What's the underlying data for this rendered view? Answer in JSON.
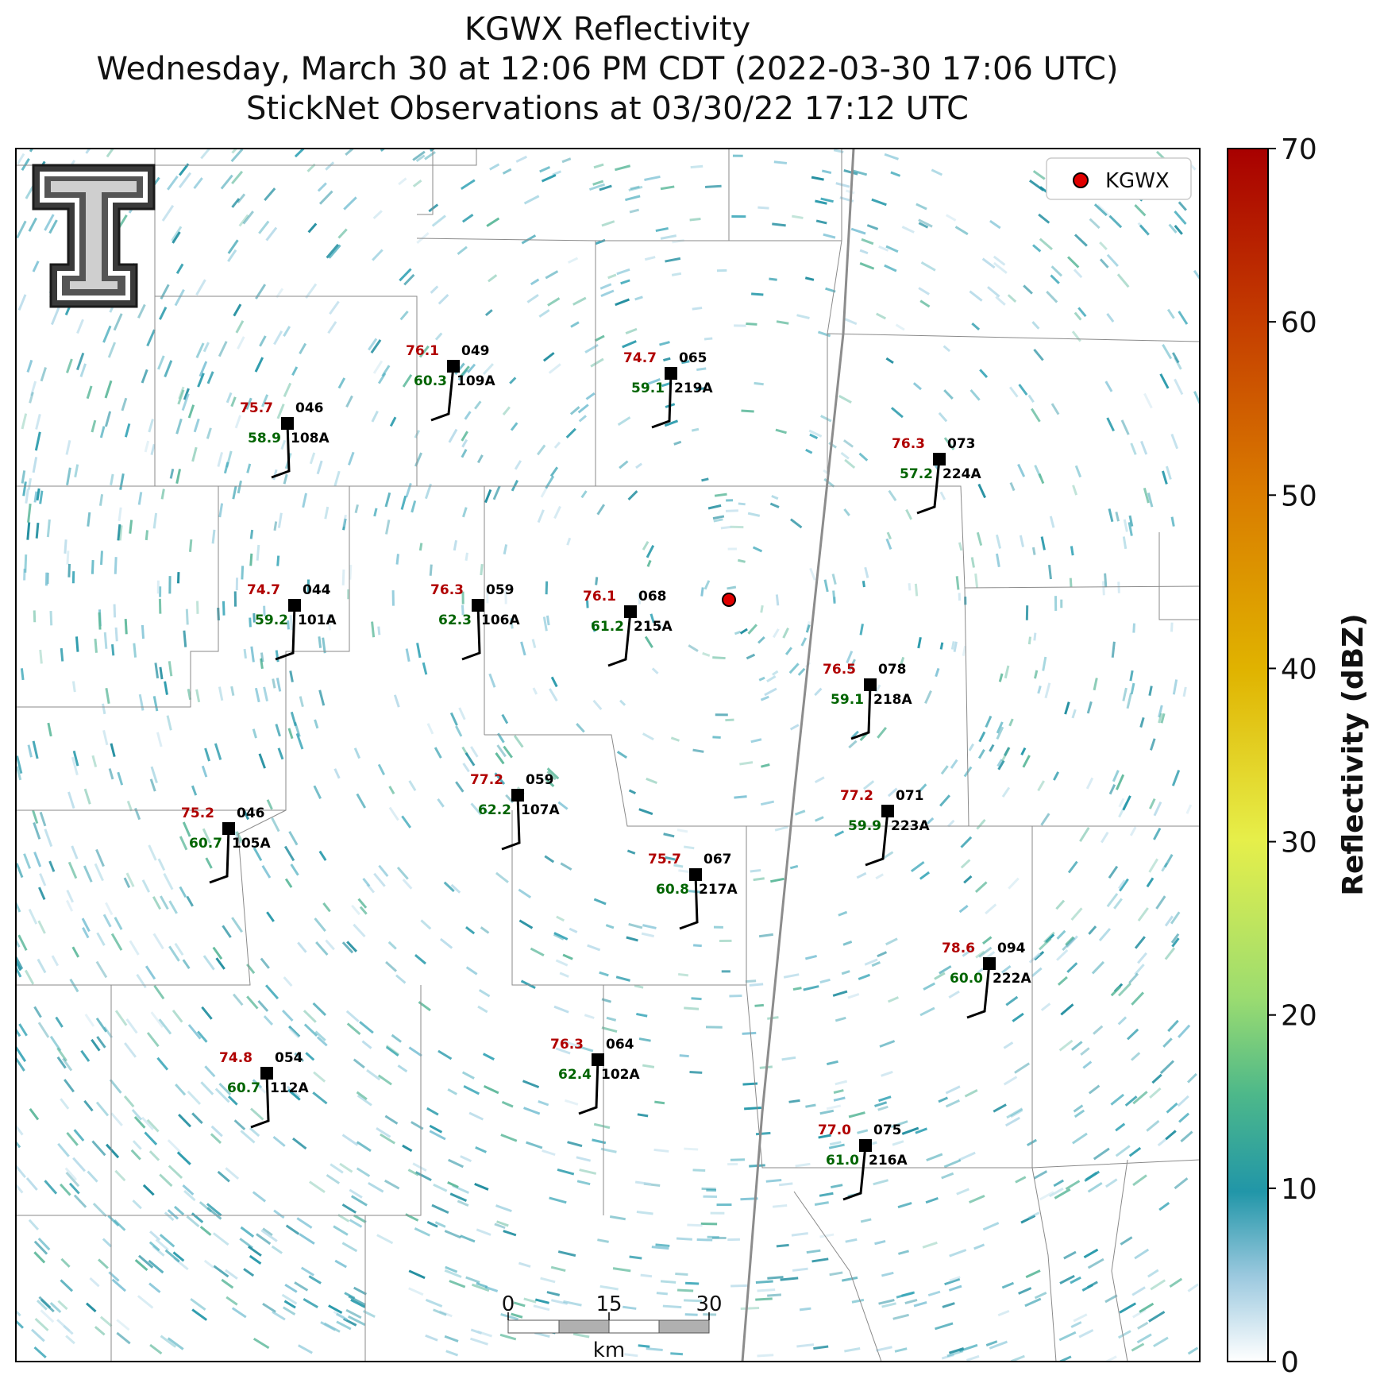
{
  "title": {
    "line1": "KGWX Reflectivity",
    "line2": "Wednesday, March 30 at 12:06 PM CDT (2022-03-30 17:06 UTC)",
    "line3": "StickNet Observations at 03/30/22 17:12 UTC"
  },
  "legend": {
    "label": "KGWX"
  },
  "colorbar": {
    "label": "Reflectivity (dBZ)",
    "ticks": [
      "0",
      "10",
      "20",
      "30",
      "40",
      "50",
      "60",
      "70"
    ]
  },
  "scalebar": {
    "ticks": [
      "0",
      "15",
      "30"
    ],
    "unit": "km"
  },
  "stations": [
    {
      "temp": "76.1",
      "dew": "60.3",
      "dir": "049",
      "id": "109A"
    },
    {
      "temp": "74.7",
      "dew": "59.1",
      "dir": "065",
      "id": "219A"
    },
    {
      "temp": "75.7",
      "dew": "58.9",
      "dir": "046",
      "id": "108A"
    },
    {
      "temp": "76.3",
      "dew": "57.2",
      "dir": "073",
      "id": "224A"
    },
    {
      "temp": "74.7",
      "dew": "59.2",
      "dir": "044",
      "id": "101A"
    },
    {
      "temp": "76.3",
      "dew": "62.3",
      "dir": "059",
      "id": "106A"
    },
    {
      "temp": "76.1",
      "dew": "61.2",
      "dir": "068",
      "id": "215A"
    },
    {
      "temp": "76.5",
      "dew": "59.1",
      "dir": "078",
      "id": "218A"
    },
    {
      "temp": "77.2",
      "dew": "62.2",
      "dir": "059",
      "id": "107A"
    },
    {
      "temp": "77.2",
      "dew": "59.9",
      "dir": "071",
      "id": "223A"
    },
    {
      "temp": "75.2",
      "dew": "60.7",
      "dir": "046",
      "id": "105A"
    },
    {
      "temp": "75.7",
      "dew": "60.8",
      "dir": "067",
      "id": "217A"
    },
    {
      "temp": "78.6",
      "dew": "60.0",
      "dir": "094",
      "id": "222A"
    },
    {
      "temp": "76.3",
      "dew": "62.4",
      "dir": "064",
      "id": "102A"
    },
    {
      "temp": "74.8",
      "dew": "60.7",
      "dir": "054",
      "id": "112A"
    },
    {
      "temp": "77.0",
      "dew": "61.0",
      "dir": "075",
      "id": "216A"
    }
  ]
}
